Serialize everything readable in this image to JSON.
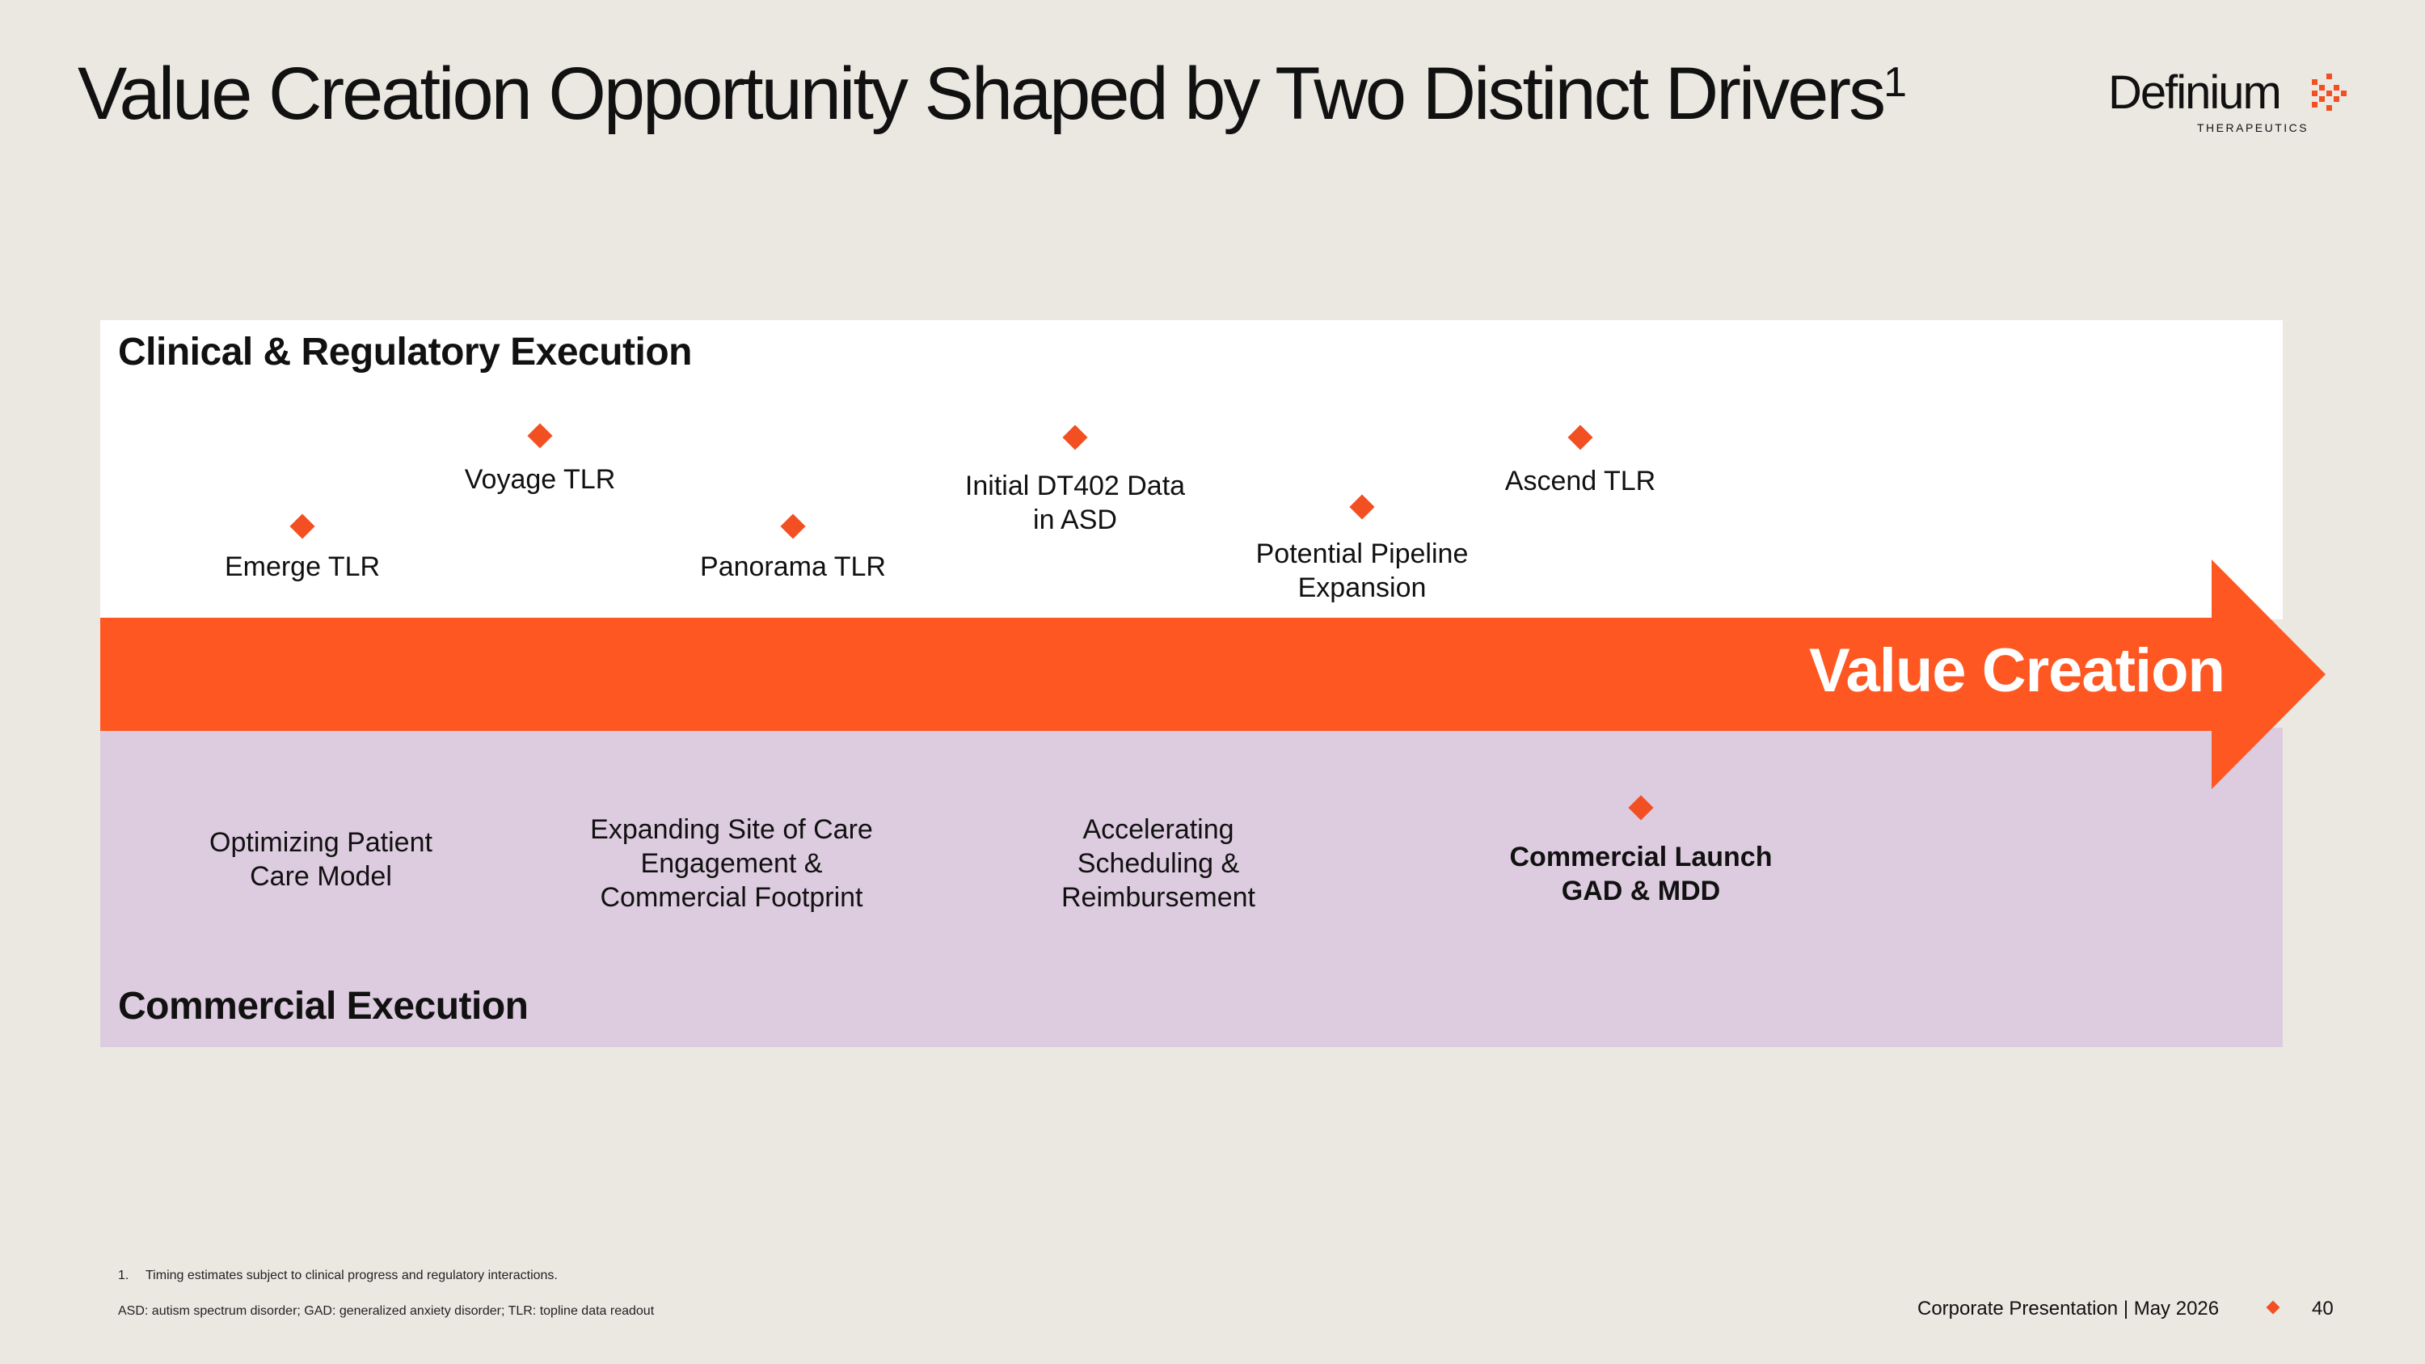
{
  "title": {
    "text": "Value Creation Opportunity Shaped by Two Distinct Drivers",
    "superscript": "1"
  },
  "logo": {
    "wordmark": "Definium",
    "subtitle": "THERAPEUTICS"
  },
  "clinical": {
    "heading": "Clinical & Regulatory Execution",
    "milestones": [
      {
        "lines": [
          "Emerge TLR"
        ]
      },
      {
        "lines": [
          "Voyage TLR"
        ]
      },
      {
        "lines": [
          "Panorama TLR"
        ]
      },
      {
        "lines": [
          "Initial DT402 Data",
          "in ASD"
        ]
      },
      {
        "lines": [
          "Potential Pipeline",
          "Expansion"
        ]
      },
      {
        "lines": [
          "Ascend TLR"
        ]
      }
    ]
  },
  "arrow_label": "Value Creation",
  "commercial": {
    "heading": "Commercial Execution",
    "items": [
      {
        "lines": [
          "Optimizing Patient",
          "Care Model"
        ]
      },
      {
        "lines": [
          "Expanding Site of Care",
          "Engagement &",
          "Commercial Footprint"
        ]
      },
      {
        "lines": [
          "Accelerating",
          "Scheduling &",
          "Reimbursement"
        ]
      },
      {
        "lines": [
          "Commercial Launch",
          "GAD & MDD"
        ]
      }
    ]
  },
  "footnotes": {
    "n1_marker": "1.",
    "n1_text": "Timing estimates subject to clinical progress and regulatory interactions.",
    "abbreviations": "ASD: autism spectrum disorder; GAD: generalized anxiety disorder; TLR: topline data readout"
  },
  "footer": {
    "text": "Corporate Presentation | May 2026",
    "page": "40"
  },
  "colors": {
    "accent": "#f25022",
    "arrow": "#ff5722",
    "background": "#ebe8e2",
    "commercial_panel": "#ddcbdf",
    "clinical_panel": "#ffffff"
  }
}
